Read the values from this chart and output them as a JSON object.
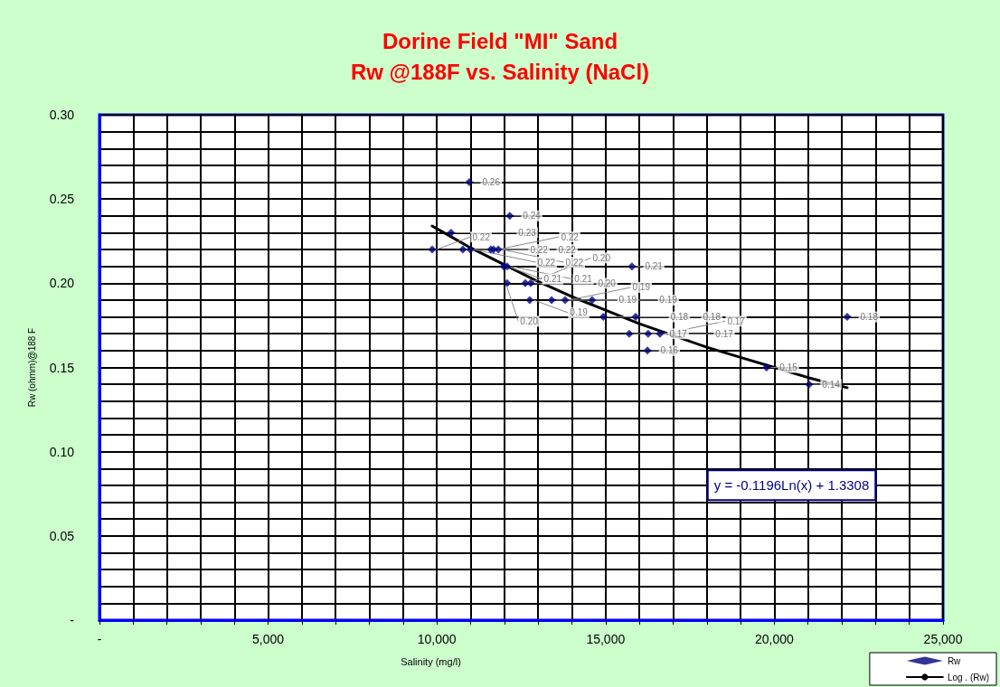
{
  "chart_data": {
    "type": "scatter",
    "title": "Dorine Field \"MI\" Sand",
    "subtitle": "Rw @188F vs. Salinity (NaCl)",
    "xlabel": "Salinity (mg/l)",
    "ylabel": "Rw (ohmm)@188 F",
    "annotations": [
      "y = -0.1196Ln(x) + 1.3308"
    ],
    "xlim": [
      0,
      25000
    ],
    "ylim": [
      0,
      0.3
    ],
    "xticks": [
      {
        "value": 0,
        "label": "-"
      },
      {
        "value": 1000,
        "label": null
      },
      {
        "value": 2000,
        "label": null
      },
      {
        "value": 3000,
        "label": null
      },
      {
        "value": 4000,
        "label": null
      },
      {
        "value": 5000,
        "label": "5,000"
      },
      {
        "value": 6000,
        "label": null
      },
      {
        "value": 7000,
        "label": null
      },
      {
        "value": 8000,
        "label": null
      },
      {
        "value": 9000,
        "label": null
      },
      {
        "value": 10000,
        "label": "10,000"
      },
      {
        "value": 11000,
        "label": null
      },
      {
        "value": 12000,
        "label": null
      },
      {
        "value": 13000,
        "label": null
      },
      {
        "value": 14000,
        "label": null
      },
      {
        "value": 15000,
        "label": "15,000"
      },
      {
        "value": 16000,
        "label": null
      },
      {
        "value": 17000,
        "label": null
      },
      {
        "value": 18000,
        "label": null
      },
      {
        "value": 19000,
        "label": null
      },
      {
        "value": 20000,
        "label": "20,000"
      },
      {
        "value": 21000,
        "label": null
      },
      {
        "value": 22000,
        "label": null
      },
      {
        "value": 23000,
        "label": null
      },
      {
        "value": 24000,
        "label": null
      },
      {
        "value": 25000,
        "label": "25,000"
      }
    ],
    "yticks": [
      {
        "value": 0,
        "label": "-"
      },
      {
        "value": 0.01,
        "label": null
      },
      {
        "value": 0.02,
        "label": null
      },
      {
        "value": 0.03,
        "label": null
      },
      {
        "value": 0.04,
        "label": null
      },
      {
        "value": 0.05,
        "label": "0.05"
      },
      {
        "value": 0.06,
        "label": null
      },
      {
        "value": 0.07,
        "label": null
      },
      {
        "value": 0.08,
        "label": null
      },
      {
        "value": 0.09,
        "label": null
      },
      {
        "value": 0.1,
        "label": "0.10"
      },
      {
        "value": 0.11,
        "label": null
      },
      {
        "value": 0.12,
        "label": null
      },
      {
        "value": 0.13,
        "label": null
      },
      {
        "value": 0.14,
        "label": null
      },
      {
        "value": 0.15,
        "label": "0.15"
      },
      {
        "value": 0.16,
        "label": null
      },
      {
        "value": 0.17,
        "label": null
      },
      {
        "value": 0.18,
        "label": null
      },
      {
        "value": 0.19,
        "label": null
      },
      {
        "value": 0.2,
        "label": "0.20"
      },
      {
        "value": 0.21,
        "label": null
      },
      {
        "value": 0.22,
        "label": null
      },
      {
        "value": 0.23,
        "label": null
      },
      {
        "value": 0.24,
        "label": null
      },
      {
        "value": 0.25,
        "label": "0.25"
      },
      {
        "value": 0.26,
        "label": null
      },
      {
        "value": 0.27,
        "label": null
      },
      {
        "value": 0.28,
        "label": null
      },
      {
        "value": 0.29,
        "label": null
      },
      {
        "value": 0.3,
        "label": "0.30"
      }
    ],
    "grid": true,
    "legend": "bottom right",
    "marker": "diamond",
    "series": [
      {
        "name": "Rw",
        "type": "scatter",
        "color": "#000080",
        "x": [
          9860,
          10420,
          10770,
          10960,
          10990,
          11600,
          11680,
          11820,
          11980,
          12080,
          12160,
          12080,
          12620,
          12780,
          12750,
          13400,
          13800,
          14600,
          14930,
          15890,
          15780,
          15700,
          16260,
          16610,
          16240,
          19770,
          21030,
          22160
        ],
        "values": [
          0.22,
          0.23,
          0.22,
          0.26,
          0.22,
          0.22,
          0.22,
          0.22,
          0.21,
          0.21,
          0.24,
          0.2,
          0.2,
          0.2,
          0.19,
          0.19,
          0.19,
          0.19,
          0.18,
          0.18,
          0.21,
          0.17,
          0.17,
          0.17,
          0.16,
          0.15,
          0.14,
          0.18
        ],
        "value_labels": [
          "0.22",
          "0.23",
          "0.22",
          "0.26",
          "0.22",
          "0.22",
          "0.22",
          "0.22",
          "0.21",
          "0.21",
          "0.24",
          "0.20",
          "0.20",
          "0.20",
          "0.19",
          "0.19",
          "0.19",
          "0.19",
          "0.18",
          "0.18",
          "0.21",
          "0.17",
          "0.17",
          "0.17",
          "0.16",
          "0.15",
          "0.14",
          "0.18"
        ]
      },
      {
        "name": "Log . (Rw)",
        "type": "line",
        "color": "#000000",
        "marker": "none",
        "line_style": "solid",
        "x": [
          9860,
          11000,
          12000,
          13000,
          14000,
          15000,
          16000,
          17000,
          18000,
          19000,
          20000,
          21000,
          22160
        ],
        "values": [
          0.234,
          0.221,
          0.211,
          0.201,
          0.192,
          0.184,
          0.176,
          0.169,
          0.162,
          0.156,
          0.15,
          0.144,
          0.138
        ]
      }
    ]
  }
}
